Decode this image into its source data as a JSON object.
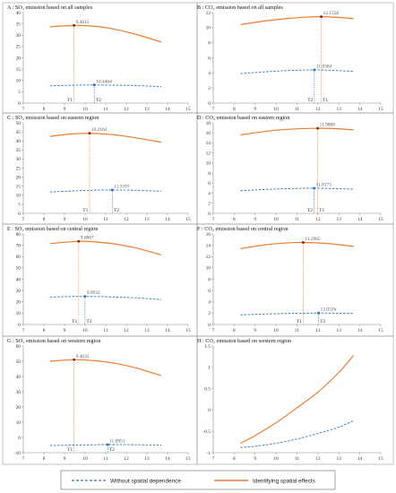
{
  "colors": {
    "orange": "#ED7D31",
    "blue": "#2E75B6",
    "grid": "#999999"
  },
  "legend": {
    "without_label": "Without spatial dependence",
    "identifying_label": "Identifying spatial effects"
  },
  "chart_data": [
    {
      "id": "A",
      "type": "line",
      "title": "A : SO₂ emission based on all samples",
      "xlim": [
        7,
        15
      ],
      "ylim": [
        0,
        40
      ],
      "xticks": [
        7,
        8,
        9,
        10,
        11,
        12,
        13,
        14,
        15
      ],
      "yticks": [
        0,
        5,
        10,
        15,
        20,
        25,
        30,
        35,
        40
      ],
      "series": [
        {
          "style": "solid-orange",
          "x": [
            8.3,
            9.4615,
            10.5,
            11.5,
            12.5,
            13.7
          ],
          "y": [
            33.7,
            34.3,
            33.9,
            32.5,
            30.3,
            27.0
          ]
        },
        {
          "style": "dashed-blue",
          "x": [
            8.3,
            9.5,
            10.4464,
            11.5,
            12.5,
            13.7
          ],
          "y": [
            7.6,
            7.9,
            8.0,
            7.9,
            7.7,
            7.3
          ]
        }
      ],
      "peaks": [
        {
          "style": "orange",
          "x": 9.4615,
          "y": 34.3,
          "label": "9.4615",
          "tlabel": "T1"
        },
        {
          "style": "blue",
          "x": 10.4464,
          "y": 8.0,
          "label": "10.4464",
          "tlabel": "T2"
        }
      ]
    },
    {
      "id": "B",
      "type": "line",
      "title": "B : CO₂ emission based on all samples",
      "xlim": [
        7,
        15
      ],
      "ylim": [
        0,
        12
      ],
      "xticks": [
        7,
        8,
        9,
        10,
        11,
        12,
        13,
        14,
        15
      ],
      "yticks": [
        0,
        2,
        4,
        6,
        8,
        10,
        12
      ],
      "series": [
        {
          "style": "solid-orange",
          "x": [
            8.3,
            9.5,
            10.5,
            11.5,
            12.1558,
            13.0,
            13.7
          ],
          "y": [
            10.4,
            10.9,
            11.2,
            11.4,
            11.45,
            11.35,
            11.2
          ]
        },
        {
          "style": "dashed-blue",
          "x": [
            8.3,
            9.5,
            10.5,
            11.8304,
            13.0,
            13.7
          ],
          "y": [
            3.9,
            4.15,
            4.3,
            4.4,
            4.3,
            4.2
          ]
        }
      ],
      "peaks": [
        {
          "style": "orange",
          "x": 12.1558,
          "y": 11.45,
          "label": "12.1558",
          "tlabel": "T1"
        },
        {
          "style": "blue",
          "x": 11.8304,
          "y": 4.4,
          "label": "11.8304",
          "tlabel": "T2"
        }
      ]
    },
    {
      "id": "C",
      "type": "line",
      "title": "C : SO₂ emission based on eastern region",
      "xlim": [
        7,
        15
      ],
      "ylim": [
        0,
        50
      ],
      "xticks": [
        7,
        8,
        9,
        10,
        11,
        12,
        13,
        14,
        15
      ],
      "yticks": [
        0,
        5,
        10,
        15,
        20,
        25,
        30,
        35,
        40,
        45,
        50
      ],
      "series": [
        {
          "style": "solid-orange",
          "x": [
            8.3,
            9.3,
            10.2162,
            11.2,
            12.3,
            13.7
          ],
          "y": [
            42.5,
            43.8,
            44.2,
            43.6,
            42.0,
            39.3
          ]
        },
        {
          "style": "dashed-blue",
          "x": [
            8.3,
            9.5,
            10.5,
            11.3197,
            12.5,
            13.7
          ],
          "y": [
            11.8,
            12.4,
            12.8,
            12.9,
            12.7,
            12.2
          ]
        }
      ],
      "peaks": [
        {
          "style": "orange",
          "x": 10.2162,
          "y": 44.2,
          "label": "10.2162",
          "tlabel": "T1"
        },
        {
          "style": "blue",
          "x": 11.3197,
          "y": 12.9,
          "label": "11.3197",
          "tlabel": "T2"
        }
      ]
    },
    {
      "id": "D",
      "type": "line",
      "title": "D : CO₂ emission based on eastern region",
      "xlim": [
        7,
        15
      ],
      "ylim": [
        0,
        18
      ],
      "xticks": [
        7,
        8,
        9,
        10,
        11,
        12,
        13,
        14,
        15
      ],
      "yticks": [
        0,
        2,
        4,
        6,
        8,
        10,
        12,
        14,
        16,
        18
      ],
      "series": [
        {
          "style": "solid-orange",
          "x": [
            8.3,
            9.5,
            10.5,
            11.9888,
            13.0,
            13.7
          ],
          "y": [
            15.6,
            16.3,
            16.7,
            16.9,
            16.8,
            16.6
          ]
        },
        {
          "style": "dashed-blue",
          "x": [
            8.3,
            9.5,
            10.5,
            11.8173,
            13.0,
            13.7
          ],
          "y": [
            4.5,
            4.75,
            4.9,
            5.0,
            4.9,
            4.8
          ]
        }
      ],
      "peaks": [
        {
          "style": "orange",
          "x": 11.9888,
          "y": 16.9,
          "label": "11.9888",
          "tlabel": "T1"
        },
        {
          "style": "blue",
          "x": 11.8173,
          "y": 5.0,
          "label": "11.8173",
          "tlabel": "T2"
        }
      ]
    },
    {
      "id": "E",
      "type": "line",
      "title": "E : SO₂ emission based on central region",
      "xlim": [
        7,
        15
      ],
      "ylim": [
        0,
        80
      ],
      "xticks": [
        7,
        8,
        9,
        10,
        11,
        12,
        13,
        14,
        15
      ],
      "yticks": [
        0,
        10,
        20,
        30,
        40,
        50,
        60,
        70,
        80
      ],
      "series": [
        {
          "style": "solid-orange",
          "x": [
            8.3,
            9.6867,
            10.5,
            11.5,
            12.5,
            13.7
          ],
          "y": [
            71.5,
            73.5,
            73.0,
            71.0,
            67.5,
            61.5
          ]
        },
        {
          "style": "dashed-blue",
          "x": [
            8.3,
            9.0,
            9.9932,
            11.0,
            12.5,
            13.7
          ],
          "y": [
            24.2,
            24.6,
            24.8,
            24.5,
            23.5,
            22.0
          ]
        }
      ],
      "peaks": [
        {
          "style": "orange",
          "x": 9.6867,
          "y": 73.5,
          "label": "9.6867",
          "tlabel": "T1"
        },
        {
          "style": "blue",
          "x": 9.9932,
          "y": 24.8,
          "label": "9.9932",
          "tlabel": "T2"
        }
      ]
    },
    {
      "id": "F",
      "type": "line",
      "title": "F : CO₂ emission based on central region",
      "xlim": [
        7,
        15
      ],
      "ylim": [
        0,
        16
      ],
      "xticks": [
        7,
        8,
        9,
        10,
        11,
        12,
        13,
        14,
        15
      ],
      "yticks": [
        0,
        2,
        4,
        6,
        8,
        10,
        12,
        14,
        16
      ],
      "series": [
        {
          "style": "solid-orange",
          "x": [
            8.3,
            9.5,
            10.5,
            11.2965,
            12.5,
            13.7
          ],
          "y": [
            13.4,
            14.1,
            14.4,
            14.5,
            14.3,
            13.8
          ]
        },
        {
          "style": "dashed-blue",
          "x": [
            8.3,
            9.5,
            10.5,
            11.5,
            12.0326,
            13.7
          ],
          "y": [
            1.7,
            1.85,
            1.95,
            2.0,
            2.02,
            1.95
          ]
        }
      ],
      "peaks": [
        {
          "style": "orange",
          "x": 11.2965,
          "y": 14.5,
          "label": "11.2965",
          "tlabel": "T1"
        },
        {
          "style": "blue",
          "x": 12.0326,
          "y": 2.02,
          "label": "12.0326",
          "tlabel": "T2"
        }
      ]
    },
    {
      "id": "G",
      "type": "line",
      "title": "G : SO₂ emission based on western region",
      "xlim": [
        7,
        15
      ],
      "ylim": [
        -10,
        60
      ],
      "xticks": [
        7,
        8,
        9,
        10,
        11,
        12,
        13,
        14,
        15
      ],
      "yticks": [
        -10,
        0,
        10,
        20,
        30,
        40,
        50,
        60
      ],
      "series": [
        {
          "style": "solid-orange",
          "x": [
            8.3,
            9.4631,
            10.5,
            11.5,
            12.5,
            13.7
          ],
          "y": [
            50.0,
            51.0,
            50.3,
            48.5,
            45.5,
            40.5
          ]
        },
        {
          "style": "dashed-blue",
          "x": [
            8.3,
            9.5,
            10.5,
            11.0951,
            12.5,
            13.7
          ],
          "y": [
            -5.3,
            -5.0,
            -4.8,
            -4.7,
            -4.8,
            -5.0
          ]
        }
      ],
      "peaks": [
        {
          "style": "orange",
          "x": 9.4631,
          "y": 51.0,
          "label": "9.4631",
          "tlabel": "T1"
        },
        {
          "style": "blue",
          "x": 11.0951,
          "y": -4.7,
          "label": "11.0951",
          "tlabel": "T2"
        }
      ]
    },
    {
      "id": "H",
      "type": "line",
      "title": "H : CO₂ emission based on western region",
      "xlim": [
        7,
        15
      ],
      "ylim": [
        -1,
        1.5
      ],
      "xticks": [
        7,
        8,
        9,
        10,
        11,
        12,
        13,
        14,
        15
      ],
      "yticks": [
        -1,
        -0.5,
        0,
        0.5,
        1,
        1.5
      ],
      "ytick_labels": [
        "-1",
        "-0.5",
        "0",
        "0.5",
        "1",
        "1.5"
      ],
      "series": [
        {
          "style": "solid-orange",
          "x": [
            8.3,
            9.0,
            10.0,
            11.0,
            12.0,
            13.0,
            13.7
          ],
          "y": [
            -0.78,
            -0.6,
            -0.3,
            0.05,
            0.42,
            0.88,
            1.28
          ]
        },
        {
          "style": "dashed-blue",
          "x": [
            8.3,
            9.0,
            10.0,
            11.0,
            12.0,
            13.0,
            13.7
          ],
          "y": [
            -0.88,
            -0.85,
            -0.78,
            -0.68,
            -0.55,
            -0.4,
            -0.25
          ]
        }
      ],
      "peaks": []
    }
  ]
}
